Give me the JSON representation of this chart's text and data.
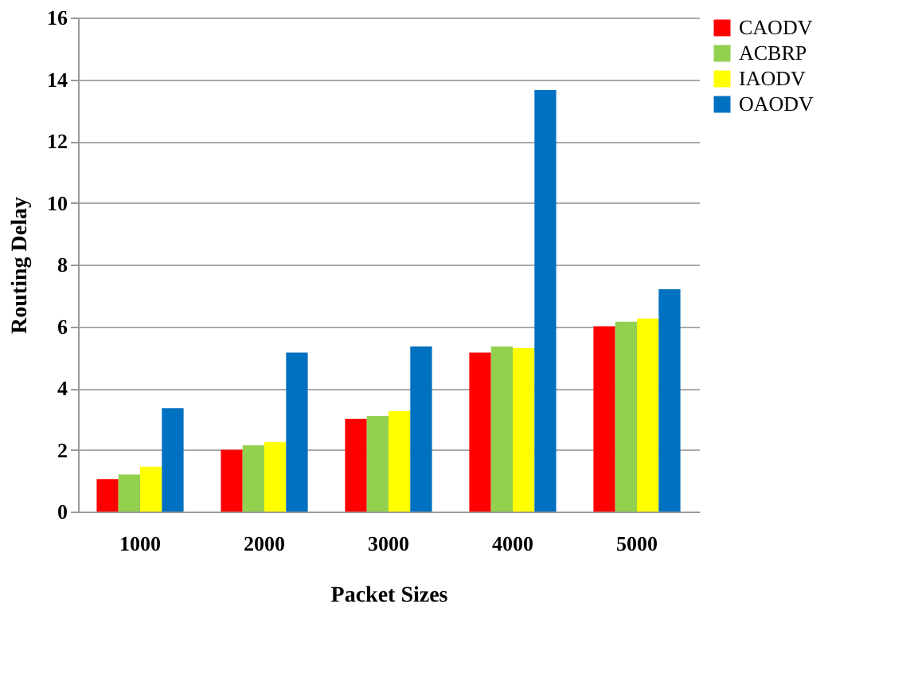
{
  "chart_data": {
    "type": "bar",
    "xlabel": "Packet Sizes",
    "ylabel": "Routing Delay",
    "categories": [
      "1000",
      "2000",
      "3000",
      "4000",
      "5000"
    ],
    "series": [
      {
        "name": "CAODV",
        "color": "#ff0000",
        "values": [
          1.05,
          2.0,
          3.0,
          5.15,
          6.0
        ]
      },
      {
        "name": "ACBRP",
        "color": "#92d050",
        "values": [
          1.2,
          2.15,
          3.1,
          5.35,
          6.15
        ]
      },
      {
        "name": "IAODV",
        "color": "#ffff00",
        "values": [
          1.45,
          2.25,
          3.25,
          5.3,
          6.25
        ]
      },
      {
        "name": "OAODV",
        "color": "#0070c0",
        "values": [
          3.35,
          5.15,
          5.35,
          13.65,
          7.2
        ]
      }
    ],
    "ylim": [
      0,
      16
    ],
    "yticks": [
      0,
      2,
      4,
      6,
      8,
      10,
      12,
      14,
      16
    ],
    "grid": "y",
    "legend": "top right"
  }
}
